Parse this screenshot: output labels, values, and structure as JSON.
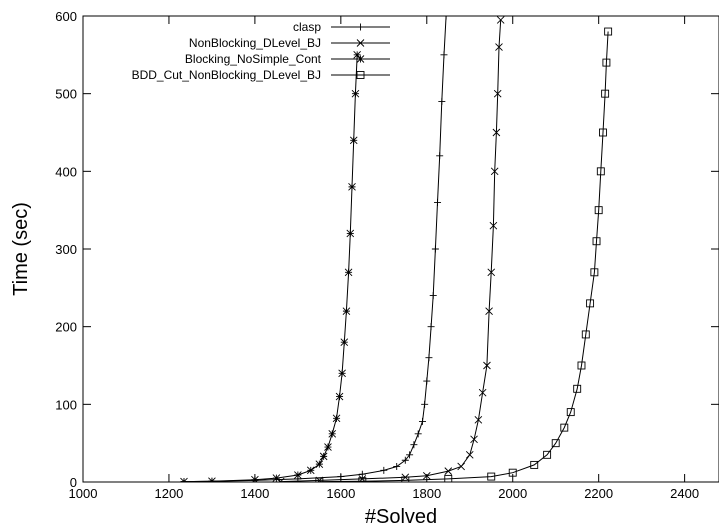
{
  "chart_data": {
    "type": "line",
    "title": "",
    "xlabel": "#Solved",
    "ylabel": "Time (sec)",
    "xlim": [
      1000,
      2480
    ],
    "ylim": [
      0,
      600
    ],
    "xticks": [
      1000,
      1200,
      1400,
      1600,
      1800,
      2000,
      2200,
      2400
    ],
    "yticks": [
      0,
      100,
      200,
      300,
      400,
      500,
      600
    ],
    "legend_position": "top-right",
    "series": [
      {
        "name": "clasp",
        "marker": "plus",
        "points": [
          [
            1235,
            0.5
          ],
          [
            1300,
            1
          ],
          [
            1400,
            2
          ],
          [
            1500,
            4
          ],
          [
            1600,
            7
          ],
          [
            1650,
            10
          ],
          [
            1700,
            15
          ],
          [
            1730,
            20
          ],
          [
            1750,
            28
          ],
          [
            1760,
            35
          ],
          [
            1770,
            48
          ],
          [
            1780,
            62
          ],
          [
            1790,
            78
          ],
          [
            1795,
            100
          ],
          [
            1800,
            130
          ],
          [
            1805,
            160
          ],
          [
            1810,
            200
          ],
          [
            1815,
            240
          ],
          [
            1820,
            300
          ],
          [
            1825,
            360
          ],
          [
            1830,
            420
          ],
          [
            1835,
            490
          ],
          [
            1840,
            550
          ],
          [
            1845,
            600
          ]
        ]
      },
      {
        "name": "NonBlocking_DLevel_BJ",
        "marker": "x",
        "points": [
          [
            1460,
            0.5
          ],
          [
            1550,
            2
          ],
          [
            1650,
            4
          ],
          [
            1750,
            6
          ],
          [
            1800,
            8
          ],
          [
            1850,
            14
          ],
          [
            1880,
            20
          ],
          [
            1900,
            35
          ],
          [
            1910,
            55
          ],
          [
            1920,
            80
          ],
          [
            1930,
            115
          ],
          [
            1940,
            150
          ],
          [
            1945,
            220
          ],
          [
            1950,
            270
          ],
          [
            1955,
            330
          ],
          [
            1958,
            400
          ],
          [
            1962,
            450
          ],
          [
            1965,
            500
          ],
          [
            1968,
            560
          ],
          [
            1972,
            595
          ]
        ]
      },
      {
        "name": "Blocking_NoSimple_Cont",
        "marker": "star",
        "points": [
          [
            1235,
            0.5
          ],
          [
            1300,
            1
          ],
          [
            1400,
            3
          ],
          [
            1450,
            5
          ],
          [
            1500,
            9
          ],
          [
            1530,
            15
          ],
          [
            1550,
            23
          ],
          [
            1560,
            33
          ],
          [
            1570,
            45
          ],
          [
            1580,
            62
          ],
          [
            1590,
            82
          ],
          [
            1597,
            110
          ],
          [
            1603,
            140
          ],
          [
            1608,
            180
          ],
          [
            1613,
            220
          ],
          [
            1618,
            270
          ],
          [
            1622,
            320
          ],
          [
            1626,
            380
          ],
          [
            1630,
            440
          ],
          [
            1634,
            500
          ],
          [
            1638,
            550
          ]
        ]
      },
      {
        "name": "BDD_Cut_NonBlocking_DLevel_BJ",
        "marker": "square",
        "points": [
          [
            1550,
            0.5
          ],
          [
            1650,
            1
          ],
          [
            1750,
            2
          ],
          [
            1850,
            4
          ],
          [
            1950,
            7
          ],
          [
            2000,
            12
          ],
          [
            2050,
            22
          ],
          [
            2080,
            35
          ],
          [
            2100,
            50
          ],
          [
            2120,
            70
          ],
          [
            2135,
            90
          ],
          [
            2150,
            120
          ],
          [
            2160,
            150
          ],
          [
            2170,
            190
          ],
          [
            2180,
            230
          ],
          [
            2190,
            270
          ],
          [
            2195,
            310
          ],
          [
            2200,
            350
          ],
          [
            2205,
            400
          ],
          [
            2210,
            450
          ],
          [
            2215,
            500
          ],
          [
            2218,
            540
          ],
          [
            2222,
            580
          ]
        ]
      }
    ]
  }
}
